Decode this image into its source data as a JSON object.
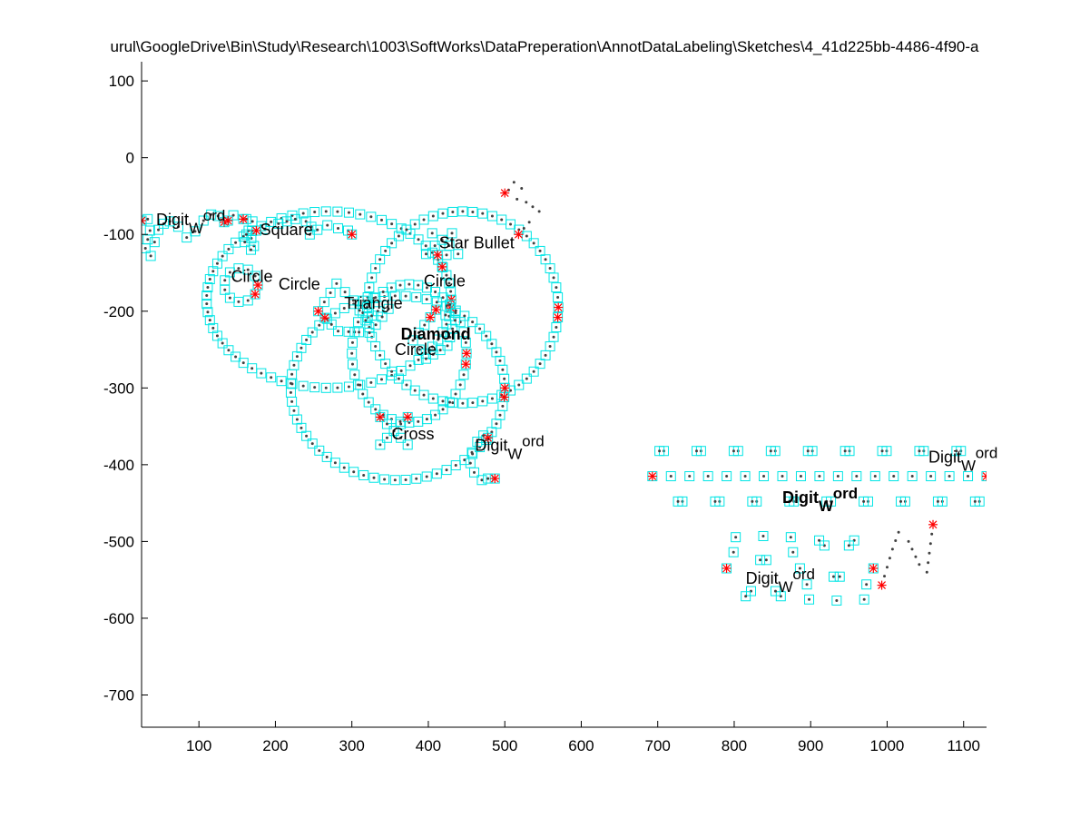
{
  "figure": {
    "title": "urul\\GoogleDrive\\Bin\\Study\\Research\\1003\\SoftWorks\\DataPreperation\\AnnotDataLabeling\\Sketches\\4_41d225bb-4486-4f90-a"
  },
  "colors": {
    "background": "#ffffff",
    "axis": "#000000",
    "marker_box": "#00e5e5",
    "trace_dot": "#404040",
    "corner_star": "#ff0000"
  },
  "chart_data": {
    "type": "scatter",
    "title": "urul\\GoogleDrive\\Bin\\Study\\Research\\1003\\SoftWorks\\DataPreperation\\AnnotDataLabeling\\Sketches\\4_41d225bb-4486-4f90-a",
    "xlabel": "",
    "ylabel": "",
    "xlim": [
      25,
      1130
    ],
    "ylim": [
      -742,
      125
    ],
    "grid": false,
    "xticks": [
      100,
      200,
      300,
      400,
      500,
      600,
      700,
      800,
      900,
      1000,
      1100
    ],
    "yticks": [
      100,
      0,
      -100,
      -200,
      -300,
      -400,
      -500,
      -600,
      -700
    ],
    "xtick_labels": [
      "100",
      "200",
      "300",
      "400",
      "500",
      "600",
      "700",
      "800",
      "900",
      "1000",
      "1100"
    ],
    "ytick_labels": [
      "100",
      "0",
      "-100",
      "-200",
      "-300",
      "-400",
      "-500",
      "-600",
      "-700"
    ],
    "annotations": [
      {
        "id": "digit-word-1",
        "base": "Digit",
        "sub": "W",
        "sup": "ord",
        "x": 44,
        "y": -88,
        "bold": false
      },
      {
        "id": "square",
        "text": "Square",
        "x": 180,
        "y": -101,
        "bold": false
      },
      {
        "id": "star-bullet",
        "text": "Star Bullet",
        "x": 414,
        "y": -118,
        "bold": false
      },
      {
        "id": "circle-small",
        "text": "Circle",
        "x": 142,
        "y": -162,
        "bold": false
      },
      {
        "id": "circle-big-left",
        "text": "Circle",
        "x": 204,
        "y": -172,
        "bold": false
      },
      {
        "id": "circle-big-right",
        "text": "Circle",
        "x": 394,
        "y": -168,
        "bold": false
      },
      {
        "id": "triangle",
        "text": "Triangle",
        "x": 290,
        "y": -197,
        "bold": false
      },
      {
        "id": "diamond",
        "text": "Diamond",
        "x": 364,
        "y": -237,
        "bold": true
      },
      {
        "id": "circle-center",
        "text": "Circle",
        "x": 356,
        "y": -257,
        "bold": false
      },
      {
        "id": "cross",
        "text": "Cross",
        "x": 352,
        "y": -367,
        "bold": false
      },
      {
        "id": "digit-word-2",
        "base": "Digit",
        "sub": "W",
        "sup": "ord",
        "x": 461,
        "y": -382,
        "bold": false
      },
      {
        "id": "digit-word-3",
        "base": "Digit",
        "sub": "W",
        "sup": "ord",
        "x": 1054,
        "y": -397,
        "bold": false
      },
      {
        "id": "digit-word-4",
        "base": "Digit",
        "sub": "W",
        "sup": "ord",
        "x": 863,
        "y": -450,
        "bold": true
      },
      {
        "id": "digit-word-5",
        "base": "Digit",
        "sub": "W",
        "sup": "ord",
        "x": 815,
        "y": -555,
        "bold": false
      }
    ],
    "series": [
      {
        "type": "polyline",
        "x": [
          25,
          33,
          36,
          30,
          37,
          42,
          47,
          54,
          62,
          73,
          84,
          95,
          106,
          116,
          125,
          133
        ],
        "y": [
          -82,
          -80,
          -95,
          -118,
          -128,
          -110,
          -94,
          -86,
          -83,
          -90,
          -104,
          -96,
          -82,
          -74,
          -76,
          -84
        ]
      },
      {
        "type": "ellipse",
        "cx": 270,
        "cy": -185,
        "rx": 160,
        "ry": 115
      },
      {
        "type": "ellipse",
        "cx": 445,
        "cy": -195,
        "rx": 125,
        "ry": 125
      },
      {
        "type": "ellipse",
        "cx": 360,
        "cy": -300,
        "rx": 140,
        "ry": 120
      },
      {
        "type": "ellipse",
        "cx": 375,
        "cy": -255,
        "rx": 75,
        "ry": 90
      },
      {
        "type": "ellipse",
        "cx": 155,
        "cy": -166,
        "rx": 22,
        "ry": 22
      },
      {
        "type": "polyline",
        "x": [
          138,
          145,
          162,
          170,
          186,
          204,
          226,
          240,
          247,
          245,
          255,
          268,
          282,
          295,
          300
        ],
        "y": [
          -82,
          -75,
          -80,
          -83,
          -93,
          -86,
          -80,
          -83,
          -90,
          -100,
          -94,
          -88,
          -92,
          -95,
          -100
        ]
      },
      {
        "type": "polyline",
        "x": [
          158,
          165,
          172,
          168,
          160,
          162,
          175
        ],
        "y": [
          -80,
          -95,
          -115,
          -120,
          -110,
          -100,
          -95
        ]
      },
      {
        "type": "polygon",
        "x": [
          256,
          280,
          302,
          318,
          334,
          348,
          323,
          282
        ],
        "y": [
          -200,
          -164,
          -186,
          -212,
          -200,
          -197,
          -228,
          -226
        ]
      },
      {
        "type": "polygon",
        "x": [
          410,
          435,
          425,
          397,
          380
        ],
        "y": [
          -198,
          -212,
          -245,
          -262,
          -238
        ]
      },
      {
        "type": "star",
        "cx": 418,
        "cy": -118,
        "r": 22
      },
      {
        "type": "cross",
        "cx": 355,
        "cy": -356,
        "r": 18
      },
      {
        "type": "polyline",
        "x": [
          478,
          472,
          464,
          457,
          455,
          460,
          470,
          478,
          487
        ],
        "y": [
          -365,
          -362,
          -370,
          -384,
          -398,
          -410,
          -420,
          -418,
          -418
        ]
      },
      {
        "type": "wave",
        "x0": 693,
        "x1": 1130,
        "ybase": -415,
        "amp": 38,
        "cycles": 9
      },
      {
        "type": "wave",
        "x0": 790,
        "x1": 982,
        "ybase": -535,
        "amp": 42,
        "cycles": 5
      },
      {
        "type": "polyline",
        "x": [
          500,
          505,
          512,
          522,
          516,
          528,
          545,
          532,
          518
        ],
        "y": [
          -46,
          -42,
          -32,
          -40,
          -54,
          -58,
          -70,
          -84,
          -100
        ]
      },
      {
        "type": "polyline",
        "x": [
          993,
          1007,
          1015,
          1028,
          1042,
          1052,
          1060
        ],
        "y": [
          -557,
          -510,
          -488,
          -500,
          -530,
          -540,
          -478
        ]
      }
    ]
  }
}
